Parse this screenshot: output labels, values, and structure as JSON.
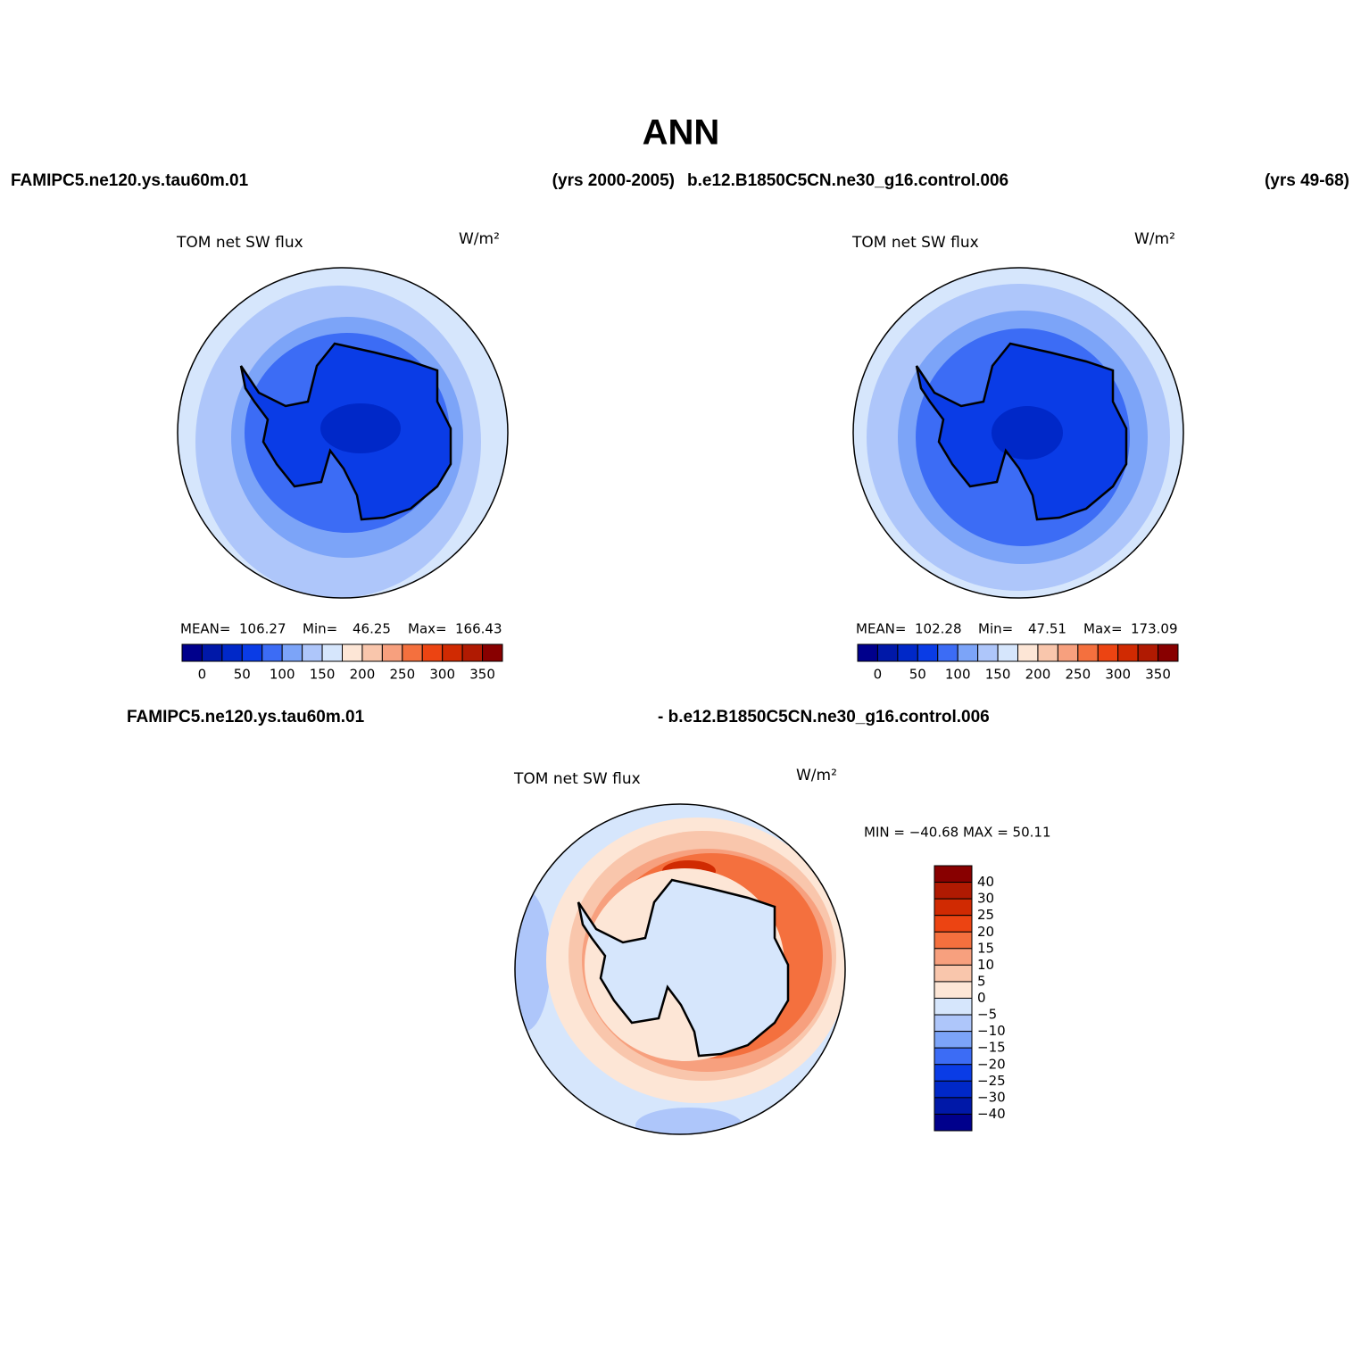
{
  "title": "ANN",
  "header": {
    "case1": "FAMIPC5.ne120.ys.tau60m.01",
    "years1": "(yrs 2000-2005)",
    "case2": "b.e12.B1850C5CN.ne30_g16.control.006",
    "years2": "(yrs 49-68)"
  },
  "panels": [
    {
      "title": "TOM net SW flux",
      "units": "W/m²",
      "mean_label": "MEAN=",
      "mean": 106.27,
      "min_label": "Min=",
      "min": 46.25,
      "max_label": "Max=",
      "max": 166.43
    },
    {
      "title": "TOM net SW flux",
      "units": "W/m²",
      "mean_label": "MEAN=",
      "mean": 102.28,
      "min_label": "Min=",
      "min": 47.51,
      "max_label": "Max=",
      "max": 173.09
    }
  ],
  "colorbar": {
    "labels": [
      "0",
      "50",
      "100",
      "150",
      "200",
      "250",
      "300",
      "350"
    ],
    "colors": [
      "#00008c",
      "#0018a8",
      "#0028c8",
      "#0a3ce6",
      "#3c6cf5",
      "#7ca4f8",
      "#aec6fa",
      "#d6e6fc",
      "#fde6d6",
      "#f9c6ac",
      "#f7a07e",
      "#f4703e",
      "#ec4412",
      "#d02a02",
      "#b01a02",
      "#880000"
    ]
  },
  "diff": {
    "case1": "FAMIPC5.ne120.ys.tau60m.01",
    "case2": "- b.e12.B1850C5CN.ne30_g16.control.006",
    "title": "TOM net SW flux",
    "units": "W/m²",
    "stats": "MIN = −40.68 MAX =  50.11",
    "colorbar": {
      "labels": [
        "40",
        "30",
        "25",
        "20",
        "15",
        "10",
        "5",
        "0",
        "−5",
        "−10",
        "−15",
        "−20",
        "−25",
        "−30",
        "−40"
      ],
      "colors": [
        "#880000",
        "#b01a02",
        "#d02a02",
        "#ec4412",
        "#f4703e",
        "#f7a07e",
        "#f9c6ac",
        "#fde6d6",
        "#d6e6fc",
        "#aec6fa",
        "#7ca4f8",
        "#3c6cf5",
        "#0a3ce6",
        "#0028c8",
        "#0018a8",
        "#00008c"
      ]
    }
  }
}
